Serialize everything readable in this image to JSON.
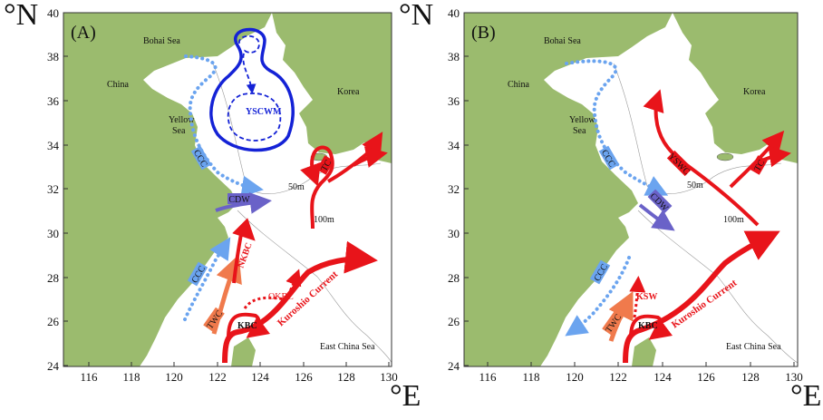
{
  "units": {
    "lat": "°N",
    "lon": "°E"
  },
  "x_ticks": [
    "116",
    "118",
    "120",
    "122",
    "124",
    "126",
    "128",
    "130"
  ],
  "y_ticks": [
    "40",
    "38",
    "36",
    "34",
    "32",
    "30",
    "28",
    "26",
    "24"
  ],
  "colors": {
    "land": "#9bbb6e",
    "sea": "#ffffff",
    "warm": "#e8141a",
    "cold": "#6ba4ef",
    "ysc": "#1422d6",
    "cdw": "#6a62c8",
    "twc": "#f07a4c"
  },
  "panelA": {
    "label": "(A)",
    "places": {
      "bohai": "Bohai Sea",
      "china": "China",
      "korea": "Korea",
      "yellow1": "Yellow",
      "yellow2": "Sea",
      "ecs": "East China Sea",
      "d50": "50m",
      "d100": "100m"
    },
    "currents": {
      "ysc": "YSCWM",
      "ccc_n": "CCC",
      "cdw": "CDW",
      "ccc_s": "CCC",
      "nkbc": "NKBC",
      "okbc": "OKBC",
      "twc": "TWC",
      "kbc": "KBC",
      "kuroshio": "Kuroshio Current",
      "tc": "TC"
    }
  },
  "panelB": {
    "label": "(B)",
    "places": {
      "bohai": "Bohai Sea",
      "china": "China",
      "korea": "Korea",
      "yellow1": "Yellow",
      "yellow2": "Sea",
      "ecs": "East China Sea",
      "d50": "50m",
      "d100": "100m"
    },
    "currents": {
      "ccc_n": "CCC",
      "ysw": "YSWC",
      "cdw": "CDW",
      "tc": "TC",
      "ccc_s": "CCC",
      "ksw": "KSW",
      "twc": "TWC",
      "kbc": "KBC",
      "kuroshio": "Kuroshio Current"
    }
  }
}
